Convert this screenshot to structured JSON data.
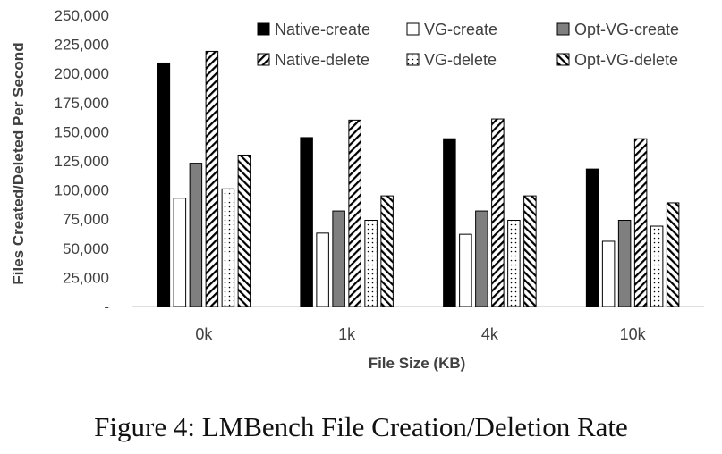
{
  "caption": "Figure 4: LMBench File Creation/Deletion Rate",
  "chart_data": {
    "type": "bar",
    "title": "",
    "xlabel": "File Size (KB)",
    "ylabel": "Files Created/Deleted Per Second",
    "ylim": [
      0,
      250000
    ],
    "yticks": [
      0,
      25000,
      50000,
      75000,
      100000,
      125000,
      150000,
      175000,
      200000,
      225000,
      250000
    ],
    "ytick_labels": [
      "-",
      "25,000",
      "50,000",
      "75,000",
      "100,000",
      "125,000",
      "150,000",
      "175,000",
      "200,000",
      "225,000",
      "250,000"
    ],
    "categories": [
      "0k",
      "1k",
      "4k",
      "10k"
    ],
    "legend_position": "top-right",
    "series": [
      {
        "name": "Native-create",
        "pattern": "solid-black",
        "values": [
          209000,
          145000,
          144000,
          118000
        ]
      },
      {
        "name": "VG-create",
        "pattern": "white",
        "values": [
          93000,
          63000,
          62000,
          56000
        ]
      },
      {
        "name": "Opt-VG-create",
        "pattern": "solid-gray",
        "values": [
          123000,
          82000,
          82000,
          74000
        ]
      },
      {
        "name": "Native-delete",
        "pattern": "diagonal-forward",
        "values": [
          219000,
          160000,
          161000,
          144000
        ]
      },
      {
        "name": "VG-delete",
        "pattern": "dotted",
        "values": [
          101000,
          74000,
          74000,
          69000
        ]
      },
      {
        "name": "Opt-VG-delete",
        "pattern": "diagonal-back",
        "values": [
          130000,
          95000,
          95000,
          89000
        ]
      }
    ],
    "colors": {
      "black": "#000000",
      "gray": "#7f7f7f",
      "axis": "#bfbfbf",
      "text": "#404040"
    }
  }
}
